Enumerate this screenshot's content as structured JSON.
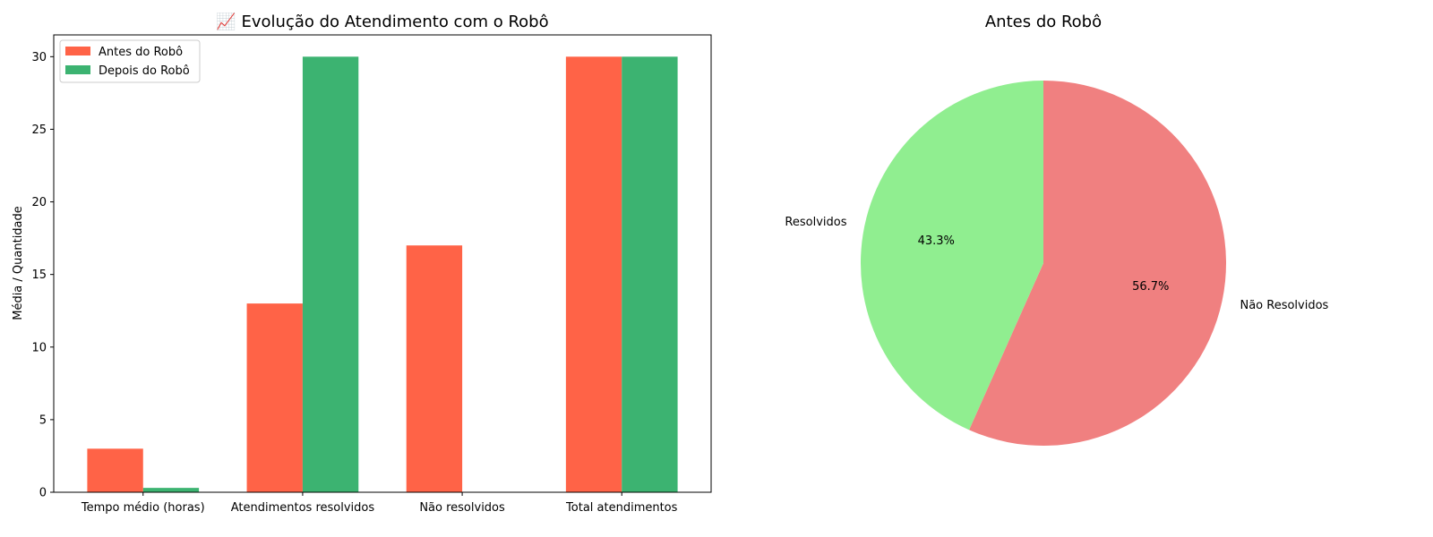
{
  "chart_data": [
    {
      "type": "bar",
      "title": "📈 Evolução do Atendimento com o Robô",
      "title_icon": "chart-increasing-icon",
      "xlabel": "",
      "ylabel": "Média / Quantidade",
      "categories": [
        "Tempo médio (horas)",
        "Atendimentos resolvidos",
        "Não resolvidos",
        "Total atendimentos"
      ],
      "series": [
        {
          "name": "Antes do Robô",
          "values": [
            3,
            13,
            17,
            30
          ],
          "color": "#ff6347"
        },
        {
          "name": "Depois do Robô",
          "values": [
            0.3,
            30,
            0,
            30
          ],
          "color": "#3cb371"
        }
      ],
      "ylim": [
        0,
        31.5
      ],
      "yticks": [
        0,
        5,
        10,
        15,
        20,
        25,
        30
      ],
      "grid": false,
      "legend_position": "top-left"
    },
    {
      "type": "pie",
      "title": "Antes do Robô",
      "labels": [
        "Não Resolvidos",
        "Resolvidos"
      ],
      "values": [
        17,
        13
      ],
      "percent_labels": [
        "56.7%",
        "43.3%"
      ],
      "colors": [
        "#f08080",
        "#90ee90"
      ],
      "start_angle": 90,
      "direction": "clockwise"
    }
  ]
}
